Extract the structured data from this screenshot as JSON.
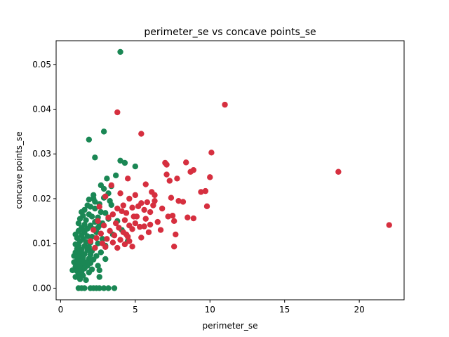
{
  "chart_data": {
    "type": "scatter",
    "title": "perimeter_se vs concave points_se",
    "xlabel": "perimeter_se",
    "ylabel": "concave points_se",
    "xlim": [
      -0.3,
      23.0
    ],
    "ylim": [
      -0.0026,
      0.0553
    ],
    "xticks": [
      0,
      5,
      10,
      15,
      20
    ],
    "xtick_labels": [
      "0",
      "5",
      "10",
      "15",
      "20"
    ],
    "yticks": [
      0.0,
      0.01,
      0.02,
      0.03,
      0.04,
      0.05
    ],
    "ytick_labels": [
      "0.00",
      "0.01",
      "0.02",
      "0.03",
      "0.04",
      "0.05"
    ],
    "grid": false,
    "series": [
      {
        "color": "#1a8754",
        "points": [
          [
            4.0,
            0.0528
          ],
          [
            2.9,
            0.035
          ],
          [
            1.9,
            0.0332
          ],
          [
            2.3,
            0.0292
          ],
          [
            4.0,
            0.0285
          ],
          [
            4.3,
            0.028
          ],
          [
            5.0,
            0.0272
          ],
          [
            3.7,
            0.0252
          ],
          [
            3.1,
            0.0245
          ],
          [
            2.7,
            0.023
          ],
          [
            3.4,
            0.0228
          ],
          [
            2.9,
            0.0222
          ],
          [
            3.2,
            0.0212
          ],
          [
            2.2,
            0.0208
          ],
          [
            2.9,
            0.0202
          ],
          [
            1.9,
            0.0198
          ],
          [
            2.3,
            0.0193
          ],
          [
            2.6,
            0.0188
          ],
          [
            3.4,
            0.0186
          ],
          [
            2.0,
            0.0182
          ],
          [
            1.6,
            0.0175
          ],
          [
            2.3,
            0.0178
          ],
          [
            1.4,
            0.017
          ],
          [
            2.7,
            0.017
          ],
          [
            3.0,
            0.0168
          ],
          [
            1.9,
            0.0165
          ],
          [
            1.5,
            0.0162
          ],
          [
            2.1,
            0.016
          ],
          [
            2.5,
            0.0158
          ],
          [
            1.3,
            0.0155
          ],
          [
            1.7,
            0.0152
          ],
          [
            3.2,
            0.0155
          ],
          [
            2.3,
            0.0148
          ],
          [
            1.2,
            0.0145
          ],
          [
            1.6,
            0.0142
          ],
          [
            2.0,
            0.014
          ],
          [
            2.6,
            0.014
          ],
          [
            1.4,
            0.0135
          ],
          [
            1.8,
            0.0133
          ],
          [
            2.2,
            0.0132
          ],
          [
            1.2,
            0.0128
          ],
          [
            1.6,
            0.0125
          ],
          [
            2.4,
            0.0125
          ],
          [
            1.0,
            0.012
          ],
          [
            1.4,
            0.0118
          ],
          [
            1.8,
            0.0116
          ],
          [
            2.1,
            0.0115
          ],
          [
            1.1,
            0.0112
          ],
          [
            1.5,
            0.011
          ],
          [
            2.8,
            0.011
          ],
          [
            1.3,
            0.0105
          ],
          [
            1.7,
            0.0103
          ],
          [
            2.0,
            0.0102
          ],
          [
            2.5,
            0.01
          ],
          [
            1.0,
            0.0098
          ],
          [
            1.2,
            0.0095
          ],
          [
            1.6,
            0.0094
          ],
          [
            1.9,
            0.0092
          ],
          [
            2.3,
            0.009
          ],
          [
            1.1,
            0.0088
          ],
          [
            1.4,
            0.0086
          ],
          [
            1.8,
            0.0085
          ],
          [
            2.1,
            0.0083
          ],
          [
            2.7,
            0.008
          ],
          [
            1.0,
            0.008
          ],
          [
            1.3,
            0.0078
          ],
          [
            1.6,
            0.0076
          ],
          [
            2.0,
            0.0075
          ],
          [
            2.4,
            0.0072
          ],
          [
            0.9,
            0.0072
          ],
          [
            1.2,
            0.007
          ],
          [
            1.5,
            0.0068
          ],
          [
            1.9,
            0.0066
          ],
          [
            2.2,
            0.0064
          ],
          [
            3.0,
            0.0065
          ],
          [
            1.1,
            0.0062
          ],
          [
            1.4,
            0.006
          ],
          [
            1.7,
            0.0058
          ],
          [
            0.9,
            0.0058
          ],
          [
            2.0,
            0.0056
          ],
          [
            1.2,
            0.0054
          ],
          [
            1.5,
            0.0052
          ],
          [
            1.8,
            0.005
          ],
          [
            2.5,
            0.005
          ],
          [
            1.0,
            0.0048
          ],
          [
            1.3,
            0.0046
          ],
          [
            1.6,
            0.0044
          ],
          [
            2.1,
            0.0042
          ],
          [
            0.8,
            0.004
          ],
          [
            1.1,
            0.0038
          ],
          [
            1.4,
            0.0036
          ],
          [
            1.9,
            0.0035
          ],
          [
            2.6,
            0.004
          ],
          [
            1.2,
            0.003
          ],
          [
            1.5,
            0.0028
          ],
          [
            1.0,
            0.0025
          ],
          [
            1.3,
            0.002
          ],
          [
            2.6,
            0.0025
          ],
          [
            1.7,
            0.0018
          ],
          [
            1.2,
            0.0
          ],
          [
            1.4,
            0.0
          ],
          [
            1.6,
            0.0
          ],
          [
            2.0,
            0.0
          ],
          [
            2.2,
            0.0
          ],
          [
            2.4,
            0.0
          ],
          [
            2.6,
            0.0
          ],
          [
            2.9,
            0.0
          ],
          [
            3.2,
            0.0
          ],
          [
            3.6,
            0.0
          ],
          [
            2.5,
            0.0135
          ],
          [
            3.5,
            0.012
          ],
          [
            3.0,
            0.0095
          ],
          [
            2.8,
            0.0145
          ],
          [
            1.8,
            0.0185
          ],
          [
            3.3,
            0.0195
          ],
          [
            4.1,
            0.013
          ],
          [
            3.8,
            0.015
          ],
          [
            4.5,
            0.0105
          ],
          [
            2.2,
            0.02
          ],
          [
            1.5,
            0.013
          ]
        ]
      },
      {
        "color": "#d62f3f",
        "points": [
          [
            11.0,
            0.041
          ],
          [
            3.8,
            0.0393
          ],
          [
            5.4,
            0.0345
          ],
          [
            10.1,
            0.0303
          ],
          [
            18.6,
            0.026
          ],
          [
            22.0,
            0.0141
          ],
          [
            7.0,
            0.028
          ],
          [
            8.4,
            0.0281
          ],
          [
            7.1,
            0.0276
          ],
          [
            8.9,
            0.0264
          ],
          [
            8.7,
            0.026
          ],
          [
            10.0,
            0.0248
          ],
          [
            7.1,
            0.0254
          ],
          [
            7.3,
            0.024
          ],
          [
            4.5,
            0.0245
          ],
          [
            7.8,
            0.0245
          ],
          [
            5.7,
            0.0232
          ],
          [
            3.4,
            0.023
          ],
          [
            9.7,
            0.0217
          ],
          [
            9.4,
            0.0215
          ],
          [
            6.1,
            0.0215
          ],
          [
            6.3,
            0.0208
          ],
          [
            4.0,
            0.0212
          ],
          [
            5.0,
            0.0208
          ],
          [
            7.4,
            0.0202
          ],
          [
            4.6,
            0.02
          ],
          [
            3.0,
            0.0205
          ],
          [
            7.9,
            0.0195
          ],
          [
            8.2,
            0.0193
          ],
          [
            5.4,
            0.019
          ],
          [
            5.8,
            0.0192
          ],
          [
            6.2,
            0.0185
          ],
          [
            9.8,
            0.0183
          ],
          [
            4.2,
            0.0185
          ],
          [
            4.8,
            0.018
          ],
          [
            5.2,
            0.0183
          ],
          [
            3.8,
            0.0178
          ],
          [
            6.8,
            0.0178
          ],
          [
            4.1,
            0.0172
          ],
          [
            5.6,
            0.0175
          ],
          [
            4.4,
            0.0168
          ],
          [
            6.0,
            0.017
          ],
          [
            3.5,
            0.0165
          ],
          [
            7.5,
            0.0162
          ],
          [
            4.9,
            0.016
          ],
          [
            8.5,
            0.0158
          ],
          [
            8.9,
            0.0156
          ],
          [
            7.2,
            0.016
          ],
          [
            3.2,
            0.0158
          ],
          [
            5.7,
            0.0155
          ],
          [
            7.6,
            0.015
          ],
          [
            4.3,
            0.0152
          ],
          [
            6.5,
            0.0148
          ],
          [
            2.5,
            0.015
          ],
          [
            5.0,
            0.0145
          ],
          [
            3.7,
            0.0145
          ],
          [
            4.6,
            0.014
          ],
          [
            6.0,
            0.0142
          ],
          [
            5.3,
            0.0137
          ],
          [
            2.9,
            0.014
          ],
          [
            3.9,
            0.0135
          ],
          [
            4.8,
            0.0132
          ],
          [
            5.6,
            0.0138
          ],
          [
            6.7,
            0.013
          ],
          [
            2.2,
            0.013
          ],
          [
            3.3,
            0.0128
          ],
          [
            4.2,
            0.0125
          ],
          [
            5.9,
            0.0125
          ],
          [
            7.7,
            0.012
          ],
          [
            2.7,
            0.0122
          ],
          [
            3.6,
            0.0118
          ],
          [
            4.5,
            0.0115
          ],
          [
            5.4,
            0.0113
          ],
          [
            2.4,
            0.0112
          ],
          [
            3.1,
            0.011
          ],
          [
            4.0,
            0.0108
          ],
          [
            4.6,
            0.0105
          ],
          [
            2.0,
            0.0105
          ],
          [
            3.5,
            0.0102
          ],
          [
            2.8,
            0.01
          ],
          [
            4.3,
            0.0098
          ],
          [
            7.6,
            0.0093
          ],
          [
            4.8,
            0.0093
          ],
          [
            3.0,
            0.0092
          ],
          [
            2.3,
            0.009
          ],
          [
            3.8,
            0.009
          ],
          [
            4.4,
            0.012
          ],
          [
            5.1,
            0.016
          ],
          [
            6.3,
            0.0195
          ],
          [
            2.6,
            0.0182
          ]
        ]
      }
    ]
  }
}
